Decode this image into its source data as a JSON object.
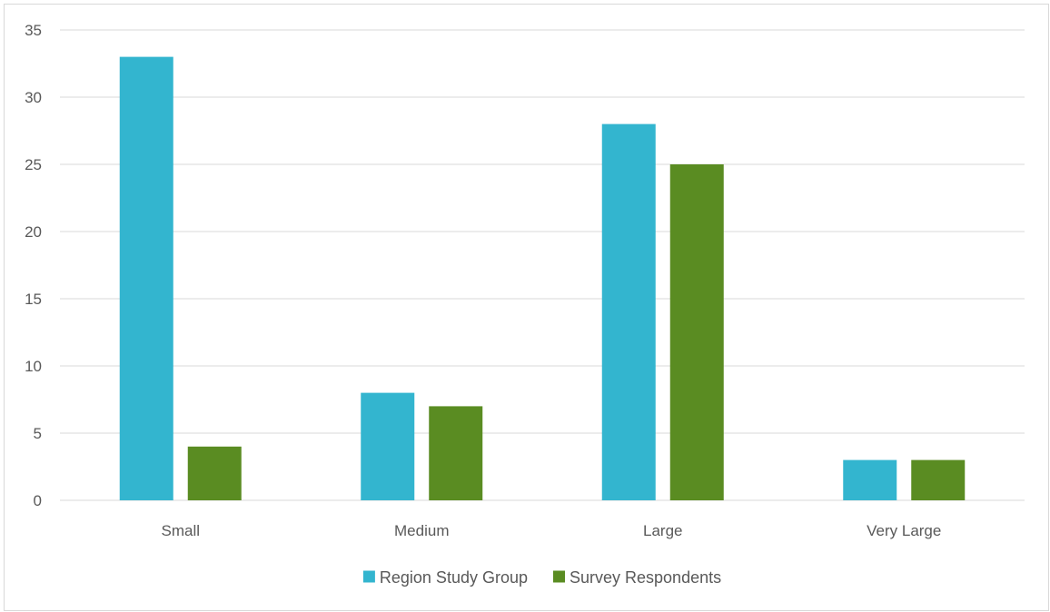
{
  "chart_data": {
    "type": "bar",
    "title": "",
    "xlabel": "",
    "ylabel": "",
    "categories": [
      "Small",
      "Medium",
      "Large",
      "Very Large"
    ],
    "series": [
      {
        "name": "Region Study Group",
        "values": [
          33,
          8,
          28,
          3
        ],
        "color": "#33b5cf"
      },
      {
        "name": "Survey Respondents",
        "values": [
          4,
          7,
          25,
          3
        ],
        "color": "#5a8c22"
      }
    ],
    "ylim": [
      0,
      35
    ],
    "yticks": [
      0,
      5,
      10,
      15,
      20,
      25,
      30,
      35
    ],
    "grid": true,
    "legend_position": "bottom"
  },
  "colors": {
    "gridline": "#d9d9d9",
    "axis": "#d9d9d9",
    "text": "#595959"
  }
}
